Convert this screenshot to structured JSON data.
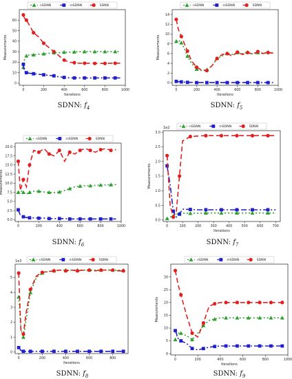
{
  "chart_data": [
    {
      "id": "f4",
      "type": "line",
      "caption_prefix": "SDNN: ",
      "caption_func": "f",
      "caption_sub": "4",
      "xlabel": "Iterations",
      "ylabel": "Measurements",
      "xlim": [
        -40,
        1000
      ],
      "ylim": [
        -2,
        70
      ],
      "xticks": [
        0,
        200,
        400,
        600,
        800,
        1000
      ],
      "yticks": [
        0,
        10,
        20,
        30,
        40,
        50,
        60
      ],
      "legend": "top",
      "series": [
        {
          "name": "nSDNN",
          "marker": "triangle",
          "dash": "2,3",
          "color": "#2ca02c",
          "x": [
            0,
            10,
            30,
            60,
            100,
            150,
            200,
            250,
            300,
            350,
            400,
            450,
            500,
            550,
            600,
            650,
            700,
            750,
            800,
            850,
            900,
            950
          ],
          "y": [
            15,
            22,
            26,
            27,
            27,
            27.5,
            28,
            28.5,
            29,
            29,
            29.5,
            29.5,
            29.8,
            30,
            30,
            30,
            30,
            30,
            30,
            30,
            30,
            30
          ]
        },
        {
          "name": "mSDNN",
          "marker": "square",
          "dash": "8,3,2,3",
          "color": "#1f1fcc",
          "x": [
            0,
            10,
            30,
            60,
            100,
            150,
            200,
            250,
            300,
            350,
            400,
            450,
            500,
            550,
            600,
            650,
            700,
            750,
            800,
            850,
            900,
            950
          ],
          "y": [
            18,
            11,
            10,
            9.5,
            9,
            8.5,
            8,
            7.5,
            7,
            6,
            5.5,
            5,
            5,
            5,
            5,
            5,
            5,
            5,
            5,
            5,
            5,
            5
          ]
        },
        {
          "name": "SDNN",
          "marker": "circle",
          "dash": "7,4",
          "color": "#e02020",
          "x": [
            0,
            10,
            30,
            60,
            100,
            150,
            200,
            250,
            300,
            350,
            400,
            450,
            500,
            550,
            600,
            650,
            700,
            750,
            800,
            850,
            900,
            950
          ],
          "y": [
            65,
            62,
            60,
            55,
            48,
            44,
            38,
            34,
            30,
            26,
            22,
            20,
            19.5,
            19,
            19,
            19,
            18.8,
            18.8,
            18.8,
            19,
            19,
            19
          ]
        }
      ]
    },
    {
      "id": "f5",
      "type": "line",
      "caption_prefix": "SDNN: ",
      "caption_func": "f",
      "caption_sub": "5",
      "xlabel": "Iterations",
      "ylabel": "Measurements",
      "xlim": [
        -40,
        1000
      ],
      "ylim": [
        -0.5,
        15
      ],
      "xticks": [
        0,
        200,
        400,
        600,
        800,
        1000
      ],
      "yticks": [
        0,
        2,
        4,
        6,
        8,
        10,
        12,
        14
      ],
      "legend": "top",
      "series": [
        {
          "name": "nSDNN",
          "marker": "triangle",
          "dash": "2,3",
          "color": "#2ca02c",
          "x": [
            0,
            20,
            50,
            80,
            110,
            150,
            200,
            250,
            300,
            350,
            400,
            450,
            500,
            550,
            600,
            650,
            700,
            750,
            800,
            850,
            900,
            950
          ],
          "y": [
            8.5,
            8.8,
            8.2,
            7,
            5.5,
            4,
            2.8,
            2.5,
            2.7,
            3.5,
            5,
            5.5,
            6,
            5.8,
            6.2,
            6,
            6.3,
            5.9,
            6.2,
            6.1,
            6.3,
            6.1
          ]
        },
        {
          "name": "mSDNN",
          "marker": "square",
          "dash": "8,3,2,3",
          "color": "#1f1fcc",
          "x": [
            0,
            20,
            50,
            80,
            110,
            150,
            200,
            250,
            300,
            350,
            400,
            450,
            500,
            550,
            600,
            650,
            700,
            750,
            800,
            850,
            900,
            950
          ],
          "y": [
            0.3,
            0.25,
            0.2,
            0.15,
            0.1,
            0.1,
            0.05,
            0.05,
            0.05,
            0.05,
            0.05,
            0.05,
            0.05,
            0.05,
            0.05,
            0.05,
            0.05,
            0.05,
            0.05,
            0.05,
            0.05,
            0.05
          ]
        },
        {
          "name": "SDNN",
          "marker": "circle",
          "dash": "7,4",
          "color": "#e02020",
          "x": [
            0,
            20,
            50,
            80,
            110,
            150,
            200,
            250,
            300,
            350,
            400,
            450,
            500,
            550,
            600,
            650,
            700,
            750,
            800,
            850,
            900,
            950
          ],
          "y": [
            13,
            11,
            9.5,
            8,
            6.5,
            4.5,
            3.2,
            2.6,
            2.5,
            3.5,
            5,
            5.8,
            6,
            5.5,
            6.3,
            5.8,
            6.2,
            5.9,
            6.4,
            6,
            6.2,
            6.1
          ]
        }
      ]
    },
    {
      "id": "f6",
      "type": "line",
      "caption_prefix": "SDNN: ",
      "caption_func": "f",
      "caption_sub": "6",
      "xlabel": "",
      "ylabel": "Measurements",
      "xlim": [
        -30,
        1000
      ],
      "ylim": [
        -0.5,
        21
      ],
      "xticks": [
        0,
        200,
        400,
        600,
        800,
        1000
      ],
      "yticks": [
        0.0,
        2.5,
        5.0,
        7.5,
        10.0,
        12.5,
        15.0,
        17.5,
        20.0
      ],
      "yticklabels": [
        "0.0",
        "2.5",
        "5.0",
        "7.5",
        "10.0",
        "12.5",
        "15.0",
        "17.5",
        "20.0"
      ],
      "legend": "top",
      "series": [
        {
          "name": "nSDNN",
          "marker": "triangle",
          "dash": "2,3",
          "color": "#2ca02c",
          "x": [
            0,
            20,
            50,
            80,
            110,
            150,
            200,
            250,
            300,
            350,
            400,
            450,
            500,
            550,
            600,
            650,
            700,
            750,
            800,
            850,
            900,
            950
          ],
          "y": [
            7.5,
            8,
            7.5,
            7,
            7.5,
            7.8,
            7.8,
            7.6,
            7.5,
            7.4,
            7.6,
            8,
            8.5,
            9,
            9.2,
            9.3,
            9.3,
            9.4,
            9.5,
            9.5,
            9.6,
            9.6
          ]
        },
        {
          "name": "mSDNN",
          "marker": "square",
          "dash": "8,3,2,3",
          "color": "#1f1fcc",
          "x": [
            0,
            20,
            50,
            80,
            110,
            150,
            200,
            250,
            300,
            350,
            400,
            450,
            500,
            550,
            600,
            650,
            700,
            750,
            800,
            850,
            900,
            950
          ],
          "y": [
            2.7,
            1.2,
            0.8,
            0.6,
            0.5,
            0.5,
            0.4,
            0.4,
            0.3,
            0.3,
            0.3,
            0.3,
            0.2,
            0.2,
            0.2,
            0.2,
            0.2,
            0.2,
            0.2,
            0.2,
            0.2,
            0.2
          ]
        },
        {
          "name": "SDNN",
          "marker": "circle",
          "dash": "7,4",
          "color": "#e02020",
          "x": [
            0,
            20,
            50,
            80,
            110,
            150,
            200,
            250,
            300,
            350,
            400,
            450,
            500,
            550,
            600,
            650,
            700,
            750,
            800,
            850,
            900,
            950
          ],
          "y": [
            16,
            8,
            11,
            9,
            15,
            19,
            18.5,
            19.5,
            18,
            17.5,
            19,
            16,
            18.5,
            18,
            19,
            19.5,
            19,
            18.5,
            19.2,
            19.5,
            19,
            19.2
          ]
        }
      ]
    },
    {
      "id": "f7",
      "type": "line",
      "caption_prefix": "SDNN: ",
      "caption_func": "f",
      "caption_sub": "7",
      "xlabel": "Iterations",
      "ylabel": "Measurements",
      "scale_label": "1e2",
      "xlim": [
        -25,
        730
      ],
      "ylim": [
        -0.05,
        3.05
      ],
      "xticks": [
        0,
        100,
        200,
        300,
        400,
        500,
        600,
        700
      ],
      "yticks": [
        0.0,
        0.5,
        1.0,
        1.5,
        2.0,
        2.5,
        3.0
      ],
      "yticklabels": [
        "0.0",
        "0.5",
        "1.0",
        "1.5",
        "2.0",
        "2.5",
        "3.0"
      ],
      "legend": "top",
      "series": [
        {
          "name": "nSDNN",
          "marker": "triangle",
          "dash": "2,3",
          "color": "#2ca02c",
          "x": [
            0,
            20,
            40,
            60,
            80,
            100,
            150,
            200,
            250,
            300,
            350,
            400,
            450,
            500,
            550,
            600,
            650,
            700
          ],
          "y": [
            0.05,
            0.1,
            0.15,
            0.2,
            0.22,
            0.23,
            0.23,
            0.23,
            0.24,
            0.24,
            0.24,
            0.24,
            0.24,
            0.24,
            0.24,
            0.24,
            0.24,
            0.24
          ]
        },
        {
          "name": "mSDNN",
          "marker": "square",
          "dash": "8,3,2,3",
          "color": "#1f1fcc",
          "x": [
            0,
            20,
            40,
            60,
            80,
            100,
            150,
            200,
            250,
            300,
            350,
            400,
            450,
            500,
            550,
            600,
            650,
            700
          ],
          "y": [
            1.85,
            1.2,
            0.3,
            0.1,
            0.2,
            0.37,
            0.36,
            0.35,
            0.35,
            0.35,
            0.35,
            0.35,
            0.35,
            0.35,
            0.35,
            0.35,
            0.35,
            0.35
          ]
        },
        {
          "name": "SDNN",
          "marker": "circle",
          "dash": "7,4",
          "color": "#e02020",
          "x": [
            0,
            20,
            40,
            60,
            80,
            100,
            150,
            200,
            250,
            300,
            350,
            400,
            450,
            500,
            550,
            600,
            650,
            700
          ],
          "y": [
            2.2,
            0.5,
            0.1,
            0.3,
            1.5,
            2.7,
            2.85,
            2.87,
            2.88,
            2.88,
            2.88,
            2.88,
            2.88,
            2.88,
            2.88,
            2.88,
            2.88,
            2.88
          ]
        }
      ]
    },
    {
      "id": "f8",
      "type": "line",
      "caption_prefix": "SDNN: ",
      "caption_func": "f",
      "caption_sub": "8",
      "xlabel": "Iterations",
      "ylabel": "",
      "scale_label": "1e3",
      "xlim": [
        -30,
        930
      ],
      "ylim": [
        -0.1,
        5.9
      ],
      "xticks": [
        0,
        200,
        400,
        600,
        800
      ],
      "yticks": [
        0,
        1,
        2,
        3,
        4,
        5
      ],
      "legend": "top",
      "series": [
        {
          "name": "nSDNN",
          "marker": "triangle",
          "dash": "2,3",
          "color": "#2ca02c",
          "x": [
            0,
            20,
            40,
            60,
            100,
            150,
            200,
            250,
            300,
            350,
            400,
            450,
            500,
            550,
            600,
            650,
            700,
            750,
            800,
            850,
            890
          ],
          "y": [
            3.7,
            1.5,
            1.0,
            2.0,
            4.0,
            5.0,
            5.3,
            5.4,
            5.45,
            5.5,
            5.5,
            5.5,
            5.5,
            5.5,
            5.5,
            5.5,
            5.5,
            5.5,
            5.5,
            5.5,
            5.5
          ]
        },
        {
          "name": "mSDNN",
          "marker": "square",
          "dash": "8,3,2,3",
          "color": "#1f1fcc",
          "x": [
            0,
            20,
            40,
            60,
            100,
            150,
            200,
            250,
            300,
            350,
            400,
            450,
            500,
            550,
            600,
            650,
            700,
            750,
            800,
            850,
            890
          ],
          "y": [
            0.3,
            0.1,
            0.05,
            0.05,
            0.05,
            0.05,
            0.05,
            0.05,
            0.05,
            0.05,
            0.05,
            0.05,
            0.05,
            0.05,
            0.05,
            0.05,
            0.05,
            0.05,
            0.05,
            0.05,
            0.05
          ]
        },
        {
          "name": "SDNN",
          "marker": "circle",
          "dash": "7,4",
          "color": "#e02020",
          "x": [
            0,
            20,
            40,
            60,
            100,
            150,
            200,
            250,
            300,
            350,
            400,
            450,
            500,
            550,
            600,
            650,
            700,
            750,
            800,
            850,
            890
          ],
          "y": [
            5.3,
            1.3,
            1.2,
            2.5,
            4.2,
            5.1,
            5.35,
            5.4,
            5.45,
            5.5,
            5.45,
            5.5,
            5.45,
            5.5,
            5.5,
            5.45,
            5.5,
            5.5,
            5.5,
            5.45,
            5.45
          ]
        }
      ]
    },
    {
      "id": "f9",
      "type": "line",
      "caption_prefix": "SDNN: ",
      "caption_func": "f",
      "caption_sub": "9",
      "xlabel": "Iterations",
      "ylabel": "Measurements",
      "xlim": [
        -40,
        1000
      ],
      "ylim": [
        -0.5,
        35
      ],
      "xticks": [
        0,
        200,
        400,
        600,
        800,
        1000
      ],
      "yticks": [
        0,
        5,
        10,
        15,
        20,
        25,
        30
      ],
      "legend": "top",
      "series": [
        {
          "name": "nSDNN",
          "marker": "triangle",
          "dash": "2,3",
          "color": "#2ca02c",
          "x": [
            0,
            25,
            50,
            100,
            150,
            200,
            250,
            300,
            350,
            400,
            450,
            500,
            550,
            600,
            650,
            700,
            750,
            800,
            850,
            900,
            950
          ],
          "y": [
            5.5,
            8,
            8,
            7,
            5.5,
            8,
            11,
            13,
            13.5,
            14,
            14,
            14,
            14,
            14,
            14,
            14,
            14,
            14,
            14,
            14,
            14
          ]
        },
        {
          "name": "mSDNN",
          "marker": "square",
          "dash": "8,3,2,3",
          "color": "#1f1fcc",
          "x": [
            0,
            25,
            50,
            100,
            150,
            200,
            250,
            300,
            350,
            400,
            450,
            500,
            550,
            600,
            650,
            700,
            750,
            800,
            850,
            900,
            950
          ],
          "y": [
            9,
            6,
            5,
            4,
            2,
            1.5,
            2,
            2.5,
            2.8,
            3,
            3,
            3,
            3,
            3,
            3,
            3,
            3,
            3,
            3,
            3,
            3
          ]
        },
        {
          "name": "SDNN",
          "marker": "circle",
          "dash": "7,4",
          "color": "#e02020",
          "x": [
            0,
            25,
            50,
            100,
            150,
            200,
            250,
            300,
            350,
            400,
            450,
            500,
            550,
            600,
            650,
            700,
            750,
            800,
            850,
            900,
            950
          ],
          "y": [
            32.5,
            27,
            23,
            15,
            8,
            6.5,
            12,
            18.5,
            19.5,
            20,
            20,
            20,
            20,
            20,
            20,
            20,
            20,
            20,
            20,
            20,
            20
          ]
        }
      ]
    }
  ]
}
